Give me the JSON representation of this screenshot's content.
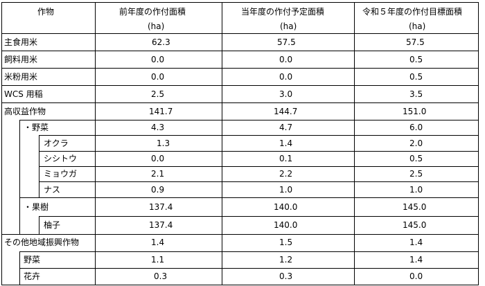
{
  "headers": {
    "col1": "作物",
    "col2_line1": "前年度の作付面積",
    "col2_line2": "(ha)",
    "col3_line1": "当年度の作付予定面積",
    "col3_line2": "(ha)",
    "col4_line1": "令和５年度の作付目標面積",
    "col4_line2": "(ha)"
  },
  "rows": [
    {
      "label": "主食用米",
      "prev": "62.3",
      "curr": "57.5",
      "target": "57.5"
    },
    {
      "label": "飼料用米",
      "prev": "0.0",
      "curr": "0.0",
      "target": "0.5"
    },
    {
      "label": "米粉用米",
      "prev": "0.0",
      "curr": "0.0",
      "target": "0.5"
    },
    {
      "label": "WCS 用稲",
      "prev": "2.5",
      "curr": "3.0",
      "target": "3.5"
    },
    {
      "label": "高収益作物",
      "prev": "141.7",
      "curr": "144.7",
      "target": "151.0"
    },
    {
      "label": "・野菜",
      "prev": "4.3",
      "curr": "4.7",
      "target": "6.0"
    },
    {
      "label": "オクラ",
      "prev": "1.3",
      "curr": "1.4",
      "target": "2.0"
    },
    {
      "label": "シシトウ",
      "prev": "0.0",
      "curr": "0.1",
      "target": "0.5"
    },
    {
      "label": "ミョウガ",
      "prev": "2.1",
      "curr": "2.2",
      "target": "2.5"
    },
    {
      "label": "ナス",
      "prev": "0.9",
      "curr": "1.0",
      "target": "1.0"
    },
    {
      "label": "・果樹",
      "prev": "137.4",
      "curr": "140.0",
      "target": "145.0"
    },
    {
      "label": "柚子",
      "prev": "137.4",
      "curr": "140.0",
      "target": "145.0"
    },
    {
      "label": "その他地域振興作物",
      "prev": "1.4",
      "curr": "1.5",
      "target": "1.4"
    },
    {
      "label": "野菜",
      "prev": "1.1",
      "curr": "1.2",
      "target": "1.4"
    },
    {
      "label": "花卉",
      "prev": "0.3",
      "curr": "0.3",
      "target": "0.0"
    }
  ]
}
